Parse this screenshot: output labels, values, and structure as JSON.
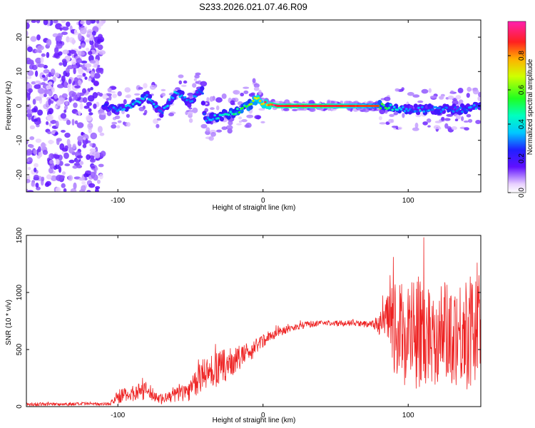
{
  "title": "S233.2026.021.07.46.R09",
  "colors": {
    "snr_line": "#ee2222",
    "tone_line": "#ff2020",
    "axis": "#000000"
  },
  "chart_data": [
    {
      "type": "heatmap",
      "name": "spectrogram",
      "xlabel": "Height of straight line (km)",
      "ylabel": "Frequency (Hz)",
      "xlim": [
        -163,
        150
      ],
      "ylim": [
        -25,
        25
      ],
      "xticks": [
        -100,
        0,
        100
      ],
      "yticks": [
        -20,
        -10,
        0,
        10,
        20
      ],
      "xtick_labels": [
        "-100",
        "0",
        "100"
      ],
      "ytick_labels": [
        "-20",
        "-10",
        "0",
        "10",
        "20"
      ],
      "colorbar": {
        "label": "Normalized spectral amplitude",
        "range": [
          0,
          1
        ],
        "ticks": [
          0.0,
          0.2,
          0.4,
          0.6,
          0.8
        ],
        "tick_labels": [
          "0.0",
          "0.2",
          "0.4",
          "0.6",
          "0.8"
        ]
      },
      "track": {
        "x": [
          -110,
          -100,
          -90,
          -80,
          -70,
          -60,
          -50,
          -42,
          -40,
          -30,
          -20,
          -10,
          -5,
          0,
          10,
          20,
          40,
          60,
          80,
          100,
          120,
          140,
          150
        ],
        "y": [
          0,
          -1,
          0,
          3,
          -2,
          4,
          1,
          5,
          -4,
          -3,
          -2,
          0,
          2,
          1,
          0,
          0,
          0,
          0,
          0,
          -1,
          -1,
          -1,
          0
        ],
        "amplitude": [
          0.25,
          0.3,
          0.35,
          0.35,
          0.3,
          0.35,
          0.3,
          0.3,
          0.3,
          0.4,
          0.45,
          0.55,
          0.7,
          0.8,
          0.95,
          0.95,
          0.95,
          0.85,
          0.55,
          0.3,
          0.3,
          0.3,
          0.3
        ]
      }
    },
    {
      "type": "line",
      "name": "snr",
      "xlabel": "Height of straight line (km)",
      "ylabel": "SNR (10 * v/v)",
      "xlim": [
        -163,
        150
      ],
      "ylim": [
        0,
        1500
      ],
      "xticks": [
        -100,
        0,
        100
      ],
      "yticks": [
        0,
        500,
        1000,
        1500
      ],
      "xtick_labels": [
        "-100",
        "0",
        "100"
      ],
      "ytick_labels": [
        "0",
        "500",
        "1000",
        "1500"
      ],
      "envelope": {
        "x": [
          -163,
          -105,
          -100,
          -80,
          -70,
          -50,
          -40,
          -30,
          -20,
          -10,
          0,
          10,
          20,
          30,
          40,
          60,
          75,
          82,
          88,
          95,
          100,
          110,
          120,
          130,
          140,
          150
        ],
        "base": [
          20,
          25,
          90,
          140,
          60,
          150,
          300,
          330,
          400,
          470,
          580,
          650,
          690,
          720,
          730,
          730,
          720,
          730,
          700,
          650,
          650,
          650,
          650,
          650,
          650,
          650
        ],
        "spread": [
          15,
          15,
          60,
          80,
          40,
          100,
          150,
          160,
          120,
          90,
          60,
          40,
          30,
          30,
          25,
          25,
          30,
          120,
          350,
          450,
          500,
          500,
          450,
          450,
          500,
          500
        ]
      }
    }
  ]
}
